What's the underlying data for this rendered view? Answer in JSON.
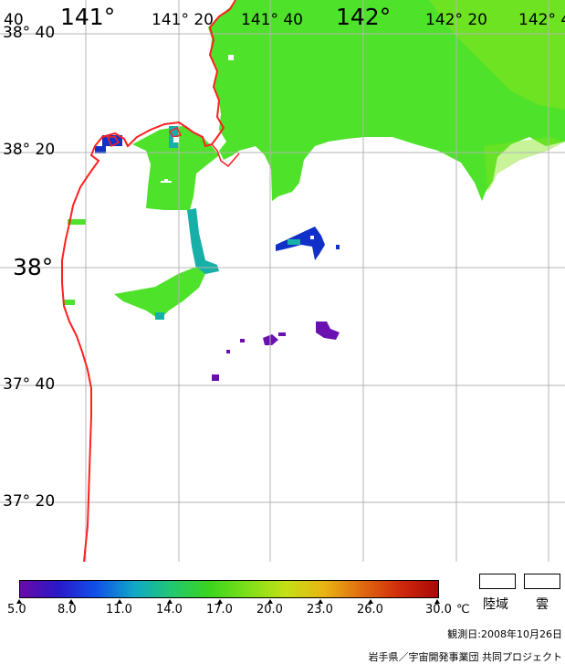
{
  "map": {
    "lon_labels": [
      {
        "text": "40",
        "style": "sm"
      },
      {
        "text": "141°",
        "style": "big"
      },
      {
        "text": "141° 20",
        "style": "sm"
      },
      {
        "text": "141° 40",
        "style": "sm"
      },
      {
        "text": "142°",
        "style": "big"
      },
      {
        "text": "142° 20",
        "style": "sm"
      },
      {
        "text": "142° 4",
        "style": "sm"
      }
    ],
    "lat_labels": [
      {
        "text": "38° 40",
        "style": "sm"
      },
      {
        "text": "38° 20",
        "style": "sm"
      },
      {
        "text": "38°",
        "style": "big"
      },
      {
        "text": "37° 40",
        "style": "sm"
      },
      {
        "text": "37° 20",
        "style": "sm"
      }
    ],
    "colors": {
      "coastline": "#ff2020",
      "grid": "#b4b4b4",
      "sst_green": "#4ee22a",
      "sst_yellowgreen": "#86e41c",
      "sst_cyan": "#16b0a8",
      "sst_blue": "#1030c8",
      "sst_purple": "#6a10b0"
    }
  },
  "colorbar": {
    "unit": "℃",
    "ticks": [
      "5.0",
      "8.0",
      "11.0",
      "14.0",
      "17.0",
      "20.0",
      "23.0",
      "26.0",
      "30.0"
    ],
    "colors": [
      "#6a0aa6",
      "#2a18c8",
      "#1050e8",
      "#10a8c8",
      "#22c870",
      "#3cd41c",
      "#7ee01a",
      "#c4e014",
      "#e8b414",
      "#e06a10",
      "#d02a0c",
      "#a80808"
    ]
  },
  "legend": {
    "land_label": "陸域",
    "cloud_label": "雲"
  },
  "footer": {
    "observation_date": "観測日:2008年10月26日",
    "credit": "岩手県／宇宙開発事業団 共同プロジェクト"
  }
}
